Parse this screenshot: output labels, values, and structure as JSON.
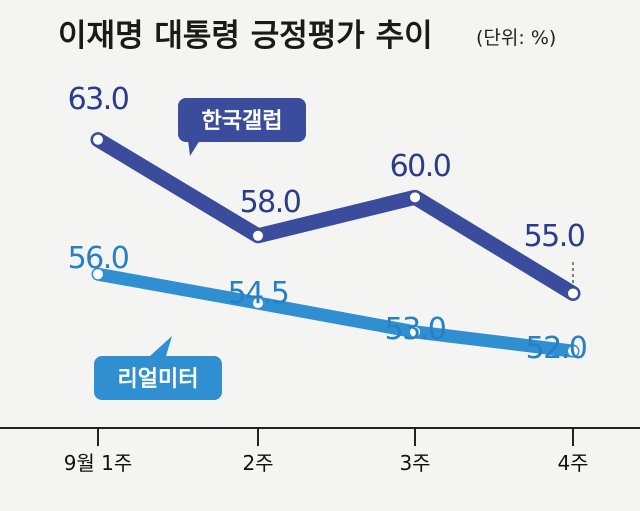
{
  "chart_data": {
    "type": "line",
    "title": "이재명 대통령 긍정평가 추이",
    "unit": "(단위: %)",
    "categories": [
      "9월 1주",
      "2주",
      "3주",
      "4주"
    ],
    "ylim": [
      48,
      66
    ],
    "grid": false,
    "series": [
      {
        "name": "한국갤럽",
        "color": "#3c4c9c",
        "label_color": "#2c3c8c",
        "values": [
          63.0,
          58.0,
          60.0,
          55.0
        ],
        "value_labels": [
          "63.0",
          "58.0",
          "60.0",
          "55.0"
        ]
      },
      {
        "name": "리얼미터",
        "color": "#2f8fd0",
        "label_color": "#2680c8",
        "values": [
          56.0,
          54.5,
          53.0,
          52.0
        ],
        "value_labels": [
          "56.0",
          "54.5",
          "53.0",
          "52.0"
        ]
      }
    ]
  }
}
